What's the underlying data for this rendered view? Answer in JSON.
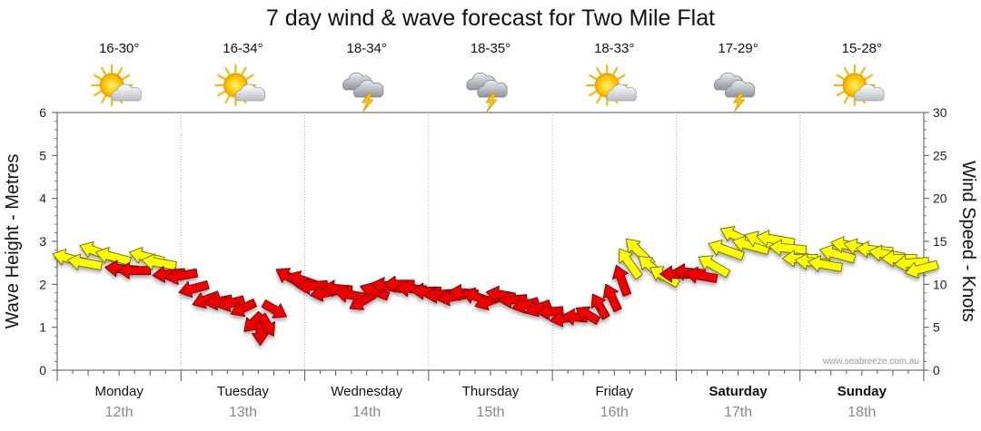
{
  "chart_data": {
    "type": "scatter",
    "title": "7 day wind & wave forecast for Two Mile Flat",
    "ylabel_left": "Wave Height - Metres",
    "ylabel_right": "Wind Speed - Knots",
    "ylim_left": [
      0,
      6
    ],
    "ylim_right": [
      0,
      30
    ],
    "yticks_left": [
      "0",
      "1",
      "2",
      "3",
      "4",
      "5",
      "6"
    ],
    "yticks_right": [
      "0",
      "5",
      "10",
      "15",
      "20",
      "25",
      "30"
    ],
    "credit": "www.seabreeze.com.au",
    "days": [
      {
        "name": "Monday",
        "date": "12th",
        "temp": "16-30°",
        "weather": "partly-cloudy",
        "bold": false
      },
      {
        "name": "Tuesday",
        "date": "13th",
        "temp": "16-34°",
        "weather": "partly-cloudy",
        "bold": false
      },
      {
        "name": "Wednesday",
        "date": "14th",
        "temp": "18-34°",
        "weather": "thunderstorm",
        "bold": false
      },
      {
        "name": "Thursday",
        "date": "15th",
        "temp": "18-35°",
        "weather": "thunderstorm",
        "bold": false
      },
      {
        "name": "Friday",
        "date": "16th",
        "temp": "18-33°",
        "weather": "partly-cloudy",
        "bold": false
      },
      {
        "name": "Saturday",
        "date": "17th",
        "temp": "17-29°",
        "weather": "thunderstorm",
        "bold": true
      },
      {
        "name": "Sunday",
        "date": "18th",
        "temp": "15-28°",
        "weather": "partly-cloudy",
        "bold": true
      }
    ],
    "arrow_legend": {
      "red": "#ee0000",
      "yellow": "#ffff00"
    },
    "series": [
      {
        "name": "Wind arrows",
        "note": "t = days from Monday 00:00; wind in knots; dir = degrees the arrow points (0=right, 90=up)",
        "points": [
          {
            "t": 0.1,
            "wind": 13.0,
            "dir": 165,
            "color": "yellow"
          },
          {
            "t": 0.22,
            "wind": 12.5,
            "dir": 170,
            "color": "yellow"
          },
          {
            "t": 0.32,
            "wind": 13.8,
            "dir": 160,
            "color": "yellow"
          },
          {
            "t": 0.45,
            "wind": 13.2,
            "dir": 165,
            "color": "yellow"
          },
          {
            "t": 0.52,
            "wind": 11.8,
            "dir": 175,
            "color": "red"
          },
          {
            "t": 0.62,
            "wind": 11.6,
            "dir": 180,
            "color": "red"
          },
          {
            "t": 0.72,
            "wind": 13.2,
            "dir": 165,
            "color": "yellow"
          },
          {
            "t": 0.82,
            "wind": 12.5,
            "dir": 170,
            "color": "yellow"
          },
          {
            "t": 0.9,
            "wind": 11.2,
            "dir": 185,
            "color": "red"
          },
          {
            "t": 1.0,
            "wind": 11.0,
            "dir": 190,
            "color": "red"
          },
          {
            "t": 1.1,
            "wind": 9.5,
            "dir": 195,
            "color": "red"
          },
          {
            "t": 1.2,
            "wind": 8.2,
            "dir": 200,
            "color": "red"
          },
          {
            "t": 1.3,
            "wind": 8.0,
            "dir": 190,
            "color": "red"
          },
          {
            "t": 1.4,
            "wind": 7.8,
            "dir": 195,
            "color": "red"
          },
          {
            "t": 1.5,
            "wind": 7.2,
            "dir": 205,
            "color": "red"
          },
          {
            "t": 1.58,
            "wind": 5.5,
            "dir": 225,
            "color": "red"
          },
          {
            "t": 1.64,
            "wind": 4.2,
            "dir": 270,
            "color": "red"
          },
          {
            "t": 1.7,
            "wind": 5.2,
            "dir": 300,
            "color": "red"
          },
          {
            "t": 1.76,
            "wind": 7.0,
            "dir": 330,
            "color": "red"
          },
          {
            "t": 1.88,
            "wind": 10.8,
            "dir": 150,
            "color": "red"
          },
          {
            "t": 1.98,
            "wind": 10.5,
            "dir": 160,
            "color": "red"
          },
          {
            "t": 2.06,
            "wind": 9.8,
            "dir": 185,
            "color": "red"
          },
          {
            "t": 2.16,
            "wind": 9.0,
            "dir": 190,
            "color": "red"
          },
          {
            "t": 2.26,
            "wind": 9.5,
            "dir": 175,
            "color": "red"
          },
          {
            "t": 2.36,
            "wind": 8.8,
            "dir": 170,
            "color": "red"
          },
          {
            "t": 2.46,
            "wind": 8.0,
            "dir": 210,
            "color": "red"
          },
          {
            "t": 2.56,
            "wind": 9.2,
            "dir": 160,
            "color": "red"
          },
          {
            "t": 2.66,
            "wind": 9.8,
            "dir": 170,
            "color": "red"
          },
          {
            "t": 2.76,
            "wind": 10.0,
            "dir": 180,
            "color": "red"
          },
          {
            "t": 2.86,
            "wind": 9.5,
            "dir": 175,
            "color": "red"
          },
          {
            "t": 2.98,
            "wind": 9.2,
            "dir": 180,
            "color": "red"
          },
          {
            "t": 3.08,
            "wind": 8.8,
            "dir": 185,
            "color": "red"
          },
          {
            "t": 3.18,
            "wind": 8.5,
            "dir": 190,
            "color": "red"
          },
          {
            "t": 3.28,
            "wind": 9.0,
            "dir": 175,
            "color": "red"
          },
          {
            "t": 3.38,
            "wind": 8.6,
            "dir": 160,
            "color": "red"
          },
          {
            "t": 3.48,
            "wind": 8.0,
            "dir": 200,
            "color": "red"
          },
          {
            "t": 3.58,
            "wind": 8.8,
            "dir": 170,
            "color": "red"
          },
          {
            "t": 3.68,
            "wind": 8.2,
            "dir": 185,
            "color": "red"
          },
          {
            "t": 3.78,
            "wind": 7.6,
            "dir": 195,
            "color": "red"
          },
          {
            "t": 3.88,
            "wind": 7.2,
            "dir": 200,
            "color": "red"
          },
          {
            "t": 3.98,
            "wind": 6.8,
            "dir": 185,
            "color": "red"
          },
          {
            "t": 4.08,
            "wind": 6.0,
            "dir": 190,
            "color": "red"
          },
          {
            "t": 4.18,
            "wind": 6.2,
            "dir": 175,
            "color": "red"
          },
          {
            "t": 4.28,
            "wind": 6.5,
            "dir": 150,
            "color": "red"
          },
          {
            "t": 4.38,
            "wind": 7.5,
            "dir": 120,
            "color": "red"
          },
          {
            "t": 4.48,
            "wind": 8.5,
            "dir": 115,
            "color": "red"
          },
          {
            "t": 4.56,
            "wind": 10.5,
            "dir": 110,
            "color": "red"
          },
          {
            "t": 4.62,
            "wind": 12.5,
            "dir": 125,
            "color": "yellow"
          },
          {
            "t": 4.7,
            "wind": 13.8,
            "dir": 135,
            "color": "yellow"
          },
          {
            "t": 4.8,
            "wind": 12.0,
            "dir": 140,
            "color": "yellow"
          },
          {
            "t": 4.9,
            "wind": 11.0,
            "dir": 150,
            "color": "yellow"
          },
          {
            "t": 5.0,
            "wind": 11.2,
            "dir": 180,
            "color": "red"
          },
          {
            "t": 5.1,
            "wind": 11.4,
            "dir": 175,
            "color": "red"
          },
          {
            "t": 5.2,
            "wind": 11.0,
            "dir": 170,
            "color": "red"
          },
          {
            "t": 5.3,
            "wind": 12.2,
            "dir": 150,
            "color": "yellow"
          },
          {
            "t": 5.4,
            "wind": 14.0,
            "dir": 160,
            "color": "yellow"
          },
          {
            "t": 5.5,
            "wind": 15.5,
            "dir": 155,
            "color": "yellow"
          },
          {
            "t": 5.6,
            "wind": 14.5,
            "dir": 165,
            "color": "yellow"
          },
          {
            "t": 5.7,
            "wind": 15.0,
            "dir": 160,
            "color": "yellow"
          },
          {
            "t": 5.8,
            "wind": 15.2,
            "dir": 170,
            "color": "yellow"
          },
          {
            "t": 5.9,
            "wind": 14.2,
            "dir": 175,
            "color": "yellow"
          },
          {
            "t": 6.0,
            "wind": 13.0,
            "dir": 180,
            "color": "yellow"
          },
          {
            "t": 6.1,
            "wind": 12.6,
            "dir": 175,
            "color": "yellow"
          },
          {
            "t": 6.2,
            "wind": 12.3,
            "dir": 170,
            "color": "yellow"
          },
          {
            "t": 6.3,
            "wind": 13.5,
            "dir": 165,
            "color": "yellow"
          },
          {
            "t": 6.4,
            "wind": 14.5,
            "dir": 170,
            "color": "yellow"
          },
          {
            "t": 6.5,
            "wind": 14.2,
            "dir": 165,
            "color": "yellow"
          },
          {
            "t": 6.6,
            "wind": 14.0,
            "dir": 175,
            "color": "yellow"
          },
          {
            "t": 6.7,
            "wind": 13.5,
            "dir": 170,
            "color": "yellow"
          },
          {
            "t": 6.8,
            "wind": 13.0,
            "dir": 180,
            "color": "yellow"
          },
          {
            "t": 6.9,
            "wind": 12.5,
            "dir": 185,
            "color": "yellow"
          },
          {
            "t": 6.98,
            "wind": 11.8,
            "dir": 195,
            "color": "yellow"
          }
        ]
      }
    ]
  }
}
